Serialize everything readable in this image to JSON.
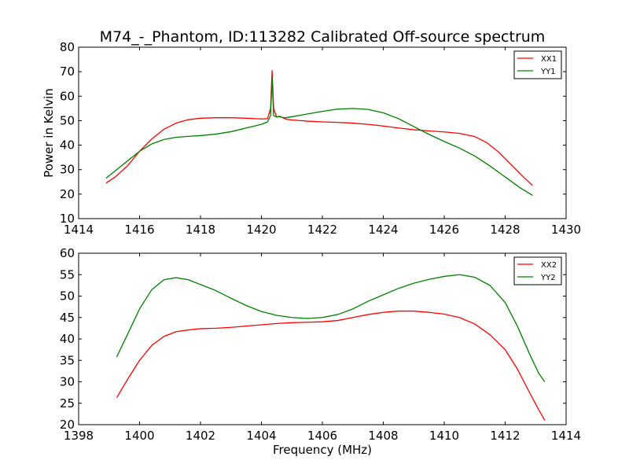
{
  "chart_data": [
    {
      "type": "line",
      "title": "M74_-_Phantom, ID:113282 Calibrated Off-source spectrum",
      "xlabel": "",
      "ylabel": "Power in Kelvin",
      "xlim": [
        1414,
        1430
      ],
      "ylim": [
        10,
        80
      ],
      "xticks": [
        "1414",
        "1416",
        "1418",
        "1420",
        "1422",
        "1424",
        "1426",
        "1428",
        "1430"
      ],
      "yticks": [
        "10",
        "20",
        "30",
        "40",
        "50",
        "60",
        "70",
        "80"
      ],
      "grid": false,
      "legend_position": "top-right",
      "series": [
        {
          "name": "XX1",
          "color": "#ff0000",
          "points": [
            [
              1414.9,
              24.5
            ],
            [
              1415.2,
              27.0
            ],
            [
              1415.6,
              31.5
            ],
            [
              1416.0,
              37.5
            ],
            [
              1416.4,
              42.5
            ],
            [
              1416.8,
              46.5
            ],
            [
              1417.2,
              49.0
            ],
            [
              1417.6,
              50.4
            ],
            [
              1418.0,
              51.0
            ],
            [
              1418.5,
              51.2
            ],
            [
              1419.0,
              51.2
            ],
            [
              1419.5,
              51.0
            ],
            [
              1420.0,
              50.7
            ],
            [
              1420.2,
              50.8
            ],
            [
              1420.3,
              55.0
            ],
            [
              1420.35,
              70.5
            ],
            [
              1420.4,
              55.0
            ],
            [
              1420.5,
              51.5
            ],
            [
              1420.6,
              51.8
            ],
            [
              1420.7,
              51.2
            ],
            [
              1420.8,
              50.6
            ],
            [
              1421.0,
              50.3
            ],
            [
              1421.5,
              49.8
            ],
            [
              1422.0,
              49.5
            ],
            [
              1422.5,
              49.3
            ],
            [
              1423.0,
              49.0
            ],
            [
              1423.5,
              48.5
            ],
            [
              1424.0,
              47.8
            ],
            [
              1424.5,
              47.0
            ],
            [
              1425.0,
              46.3
            ],
            [
              1425.5,
              45.8
            ],
            [
              1426.0,
              45.4
            ],
            [
              1426.5,
              44.8
            ],
            [
              1427.0,
              43.5
            ],
            [
              1427.4,
              41.0
            ],
            [
              1427.8,
              37.0
            ],
            [
              1428.2,
              32.0
            ],
            [
              1428.6,
              27.0
            ],
            [
              1428.9,
              23.5
            ]
          ]
        },
        {
          "name": "YY1",
          "color": "#008000",
          "points": [
            [
              1414.9,
              26.5
            ],
            [
              1415.2,
              29.5
            ],
            [
              1415.6,
              33.5
            ],
            [
              1416.0,
              37.5
            ],
            [
              1416.4,
              40.5
            ],
            [
              1416.8,
              42.3
            ],
            [
              1417.2,
              43.2
            ],
            [
              1417.6,
              43.6
            ],
            [
              1418.0,
              43.9
            ],
            [
              1418.5,
              44.5
            ],
            [
              1419.0,
              45.5
            ],
            [
              1419.5,
              47.0
            ],
            [
              1420.0,
              48.5
            ],
            [
              1420.2,
              49.5
            ],
            [
              1420.3,
              52.0
            ],
            [
              1420.35,
              67.5
            ],
            [
              1420.4,
              52.0
            ],
            [
              1420.5,
              51.5
            ],
            [
              1420.6,
              51.6
            ],
            [
              1420.7,
              51.3
            ],
            [
              1420.8,
              51.2
            ],
            [
              1421.0,
              51.6
            ],
            [
              1421.5,
              52.7
            ],
            [
              1422.0,
              53.8
            ],
            [
              1422.5,
              54.7
            ],
            [
              1423.0,
              55.0
            ],
            [
              1423.5,
              54.6
            ],
            [
              1424.0,
              53.2
            ],
            [
              1424.5,
              50.8
            ],
            [
              1425.0,
              47.6
            ],
            [
              1425.5,
              44.4
            ],
            [
              1426.0,
              41.5
            ],
            [
              1426.5,
              38.8
            ],
            [
              1427.0,
              35.6
            ],
            [
              1427.5,
              31.5
            ],
            [
              1428.0,
              27.0
            ],
            [
              1428.5,
              22.5
            ],
            [
              1428.9,
              19.5
            ]
          ]
        }
      ]
    },
    {
      "type": "line",
      "title": "",
      "xlabel": "Frequency (MHz)",
      "ylabel": "",
      "xlim": [
        1398,
        1414
      ],
      "ylim": [
        20,
        60
      ],
      "xticks": [
        "1398",
        "1400",
        "1402",
        "1404",
        "1406",
        "1408",
        "1410",
        "1412",
        "1414"
      ],
      "yticks": [
        "20",
        "25",
        "30",
        "35",
        "40",
        "45",
        "50",
        "55",
        "60"
      ],
      "grid": false,
      "legend_position": "top-right",
      "series": [
        {
          "name": "XX2",
          "color": "#ff0000",
          "points": [
            [
              1399.25,
              26.3
            ],
            [
              1399.6,
              30.5
            ],
            [
              1400.0,
              35.0
            ],
            [
              1400.4,
              38.5
            ],
            [
              1400.8,
              40.6
            ],
            [
              1401.2,
              41.7
            ],
            [
              1401.6,
              42.1
            ],
            [
              1402.0,
              42.4
            ],
            [
              1402.5,
              42.5
            ],
            [
              1403.0,
              42.7
            ],
            [
              1403.5,
              43.0
            ],
            [
              1404.0,
              43.3
            ],
            [
              1404.5,
              43.6
            ],
            [
              1405.0,
              43.8
            ],
            [
              1405.5,
              43.9
            ],
            [
              1406.0,
              44.0
            ],
            [
              1406.5,
              44.3
            ],
            [
              1407.0,
              45.0
            ],
            [
              1407.5,
              45.7
            ],
            [
              1408.0,
              46.2
            ],
            [
              1408.5,
              46.5
            ],
            [
              1409.0,
              46.5
            ],
            [
              1409.5,
              46.2
            ],
            [
              1410.0,
              45.8
            ],
            [
              1410.5,
              45.0
            ],
            [
              1411.0,
              43.5
            ],
            [
              1411.5,
              41.0
            ],
            [
              1412.0,
              37.5
            ],
            [
              1412.4,
              33.0
            ],
            [
              1412.8,
              27.5
            ],
            [
              1413.1,
              23.5
            ],
            [
              1413.3,
              21.0
            ]
          ]
        },
        {
          "name": "YY2",
          "color": "#008000",
          "points": [
            [
              1399.25,
              35.8
            ],
            [
              1399.6,
              41.0
            ],
            [
              1400.0,
              47.0
            ],
            [
              1400.4,
              51.5
            ],
            [
              1400.8,
              53.8
            ],
            [
              1401.2,
              54.3
            ],
            [
              1401.6,
              53.8
            ],
            [
              1402.0,
              52.7
            ],
            [
              1402.5,
              51.3
            ],
            [
              1403.0,
              49.5
            ],
            [
              1403.5,
              47.8
            ],
            [
              1404.0,
              46.4
            ],
            [
              1404.5,
              45.5
            ],
            [
              1405.0,
              45.0
            ],
            [
              1405.5,
              44.8
            ],
            [
              1406.0,
              45.0
            ],
            [
              1406.5,
              45.7
            ],
            [
              1407.0,
              47.0
            ],
            [
              1407.5,
              48.8
            ],
            [
              1408.0,
              50.3
            ],
            [
              1408.5,
              51.8
            ],
            [
              1409.0,
              53.0
            ],
            [
              1409.5,
              53.9
            ],
            [
              1410.0,
              54.6
            ],
            [
              1410.5,
              55.0
            ],
            [
              1411.0,
              54.4
            ],
            [
              1411.5,
              52.5
            ],
            [
              1412.0,
              48.5
            ],
            [
              1412.4,
              43.0
            ],
            [
              1412.8,
              36.5
            ],
            [
              1413.1,
              32.0
            ],
            [
              1413.3,
              30.0
            ]
          ]
        }
      ]
    }
  ]
}
